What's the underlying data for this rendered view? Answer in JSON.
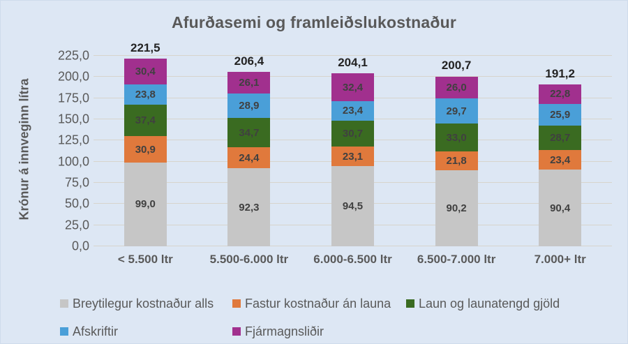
{
  "window": {
    "background": "#dde7f4"
  },
  "chart_data": {
    "type": "bar",
    "subtype": "stacked",
    "title": "Afurðasemi og framleiðslukostnaður",
    "xlabel": "",
    "ylabel": "Krónur á innveginn lítra",
    "ylim": [
      0,
      225
    ],
    "ytick_step": 25,
    "ytick_labels": [
      "0,0",
      "25,0",
      "50,0",
      "75,0",
      "100,0",
      "125,0",
      "150,0",
      "175,0",
      "200,0",
      "225,0"
    ],
    "grid": true,
    "legend_position": "bottom",
    "decimal_separator": ",",
    "categories": [
      "< 5.500 ltr",
      "5.500-6.000 ltr",
      "6.000-6.500 ltr",
      "6.500-7.000 ltr",
      "7.000+ ltr"
    ],
    "series": [
      {
        "name": "Breytilegur kostnaður alls",
        "color": "#c6c6c6",
        "values": [
          99.0,
          92.3,
          94.5,
          90.2,
          90.4
        ]
      },
      {
        "name": "Fastur kostnaður án launa",
        "color": "#e0793c",
        "values": [
          30.9,
          24.4,
          23.1,
          21.8,
          23.4
        ]
      },
      {
        "name": "Laun og launatengd gjöld",
        "color": "#3a6b21",
        "values": [
          37.4,
          34.7,
          30.7,
          33.0,
          28.7
        ]
      },
      {
        "name": "Afskriftir",
        "color": "#4a9fd8",
        "values": [
          23.8,
          28.9,
          23.4,
          29.7,
          25.9
        ]
      },
      {
        "name": "Fjármagnsliðir",
        "color": "#a1308e",
        "values": [
          30.4,
          26.1,
          32.4,
          26.0,
          22.8
        ]
      }
    ],
    "totals": [
      221.5,
      206.4,
      204.1,
      200.7,
      191.2
    ],
    "colors": {
      "title_text": "#595959",
      "axis_text": "#595959",
      "segment_label_text": "#404040",
      "total_label_text": "#232323",
      "gridline": "#d7d4cc",
      "background": "#dde7f4"
    }
  }
}
